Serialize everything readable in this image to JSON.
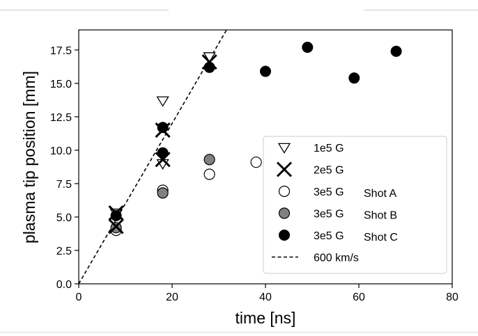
{
  "chart_data": {
    "type": "scatter",
    "title": "",
    "xlabel": "time [ns]",
    "ylabel": "plasma tip position [mm]",
    "xlim": [
      0,
      80
    ],
    "ylim": [
      0,
      19
    ],
    "xticks": [
      0,
      20,
      40,
      60,
      80
    ],
    "yticks": [
      0.0,
      2.5,
      5.0,
      7.5,
      10.0,
      12.5,
      15.0,
      17.5
    ],
    "xtick_labels": [
      "0",
      "20",
      "40",
      "60",
      "80"
    ],
    "ytick_labels": [
      "0.0",
      "2.5",
      "5.0",
      "7.5",
      "10.0",
      "12.5",
      "15.0",
      "17.5"
    ],
    "grid": false,
    "legend_position": "lower-right",
    "series": [
      {
        "name": "1e5 G",
        "name_parts": [
          "1e5 G",
          ""
        ],
        "marker": "triangle-down-open",
        "points": [
          [
            8,
            5.3
          ],
          [
            18,
            9.0
          ],
          [
            18,
            13.7
          ],
          [
            28,
            17.0
          ]
        ]
      },
      {
        "name": "2e5 G",
        "name_parts": [
          "2e5 G",
          ""
        ],
        "marker": "x",
        "points": [
          [
            8,
            4.3
          ],
          [
            8,
            5.3
          ],
          [
            18,
            9.3
          ],
          [
            18,
            11.5
          ],
          [
            28,
            16.6
          ]
        ]
      },
      {
        "name": "3e5 G Shot A",
        "name_parts": [
          "3e5 G",
          "Shot A"
        ],
        "marker": "circle-open",
        "points": [
          [
            8,
            4.0
          ],
          [
            18,
            7.0
          ],
          [
            28,
            8.2
          ],
          [
            38,
            9.1
          ]
        ]
      },
      {
        "name": "3e5 G Shot B",
        "name_parts": [
          "3e5 G",
          "Shot B"
        ],
        "marker": "circle-gray",
        "color": "#808080",
        "points": [
          [
            8,
            4.2
          ],
          [
            18,
            6.8
          ],
          [
            28,
            9.3
          ]
        ]
      },
      {
        "name": "3e5 G Shot C",
        "name_parts": [
          "3e5 G",
          "Shot C"
        ],
        "marker": "circle-filled",
        "color": "#000000",
        "points": [
          [
            8,
            5.1
          ],
          [
            18,
            9.8
          ],
          [
            18,
            11.7
          ],
          [
            28,
            16.2
          ],
          [
            40,
            15.9
          ],
          [
            49,
            17.7
          ],
          [
            59,
            15.4
          ],
          [
            68,
            17.4
          ]
        ]
      },
      {
        "name": "600 km/s",
        "name_parts": [
          "600 km/s",
          ""
        ],
        "marker": "dashed-line",
        "points": [
          [
            0,
            0
          ],
          [
            32,
            19.2
          ]
        ]
      }
    ]
  }
}
